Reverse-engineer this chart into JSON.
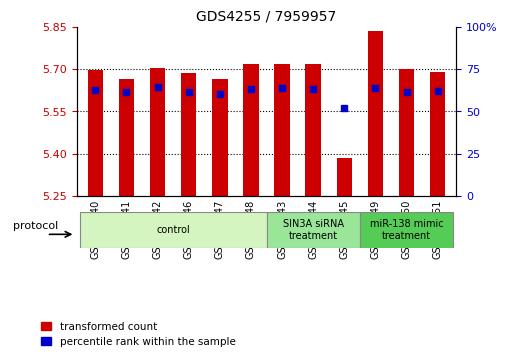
{
  "title": "GDS4255 / 7959957",
  "samples": [
    "GSM952740",
    "GSM952741",
    "GSM952742",
    "GSM952746",
    "GSM952747",
    "GSM952748",
    "GSM952743",
    "GSM952744",
    "GSM952745",
    "GSM952749",
    "GSM952750",
    "GSM952751"
  ],
  "red_values": [
    5.695,
    5.663,
    5.704,
    5.685,
    5.663,
    5.717,
    5.717,
    5.717,
    5.385,
    5.835,
    5.7,
    5.688
  ],
  "blue_values": [
    5.625,
    5.618,
    5.638,
    5.62,
    5.613,
    5.628,
    5.632,
    5.63,
    5.563,
    5.632,
    5.618,
    5.622
  ],
  "ymin": 5.25,
  "ymax": 5.85,
  "y2min": 0,
  "y2max": 100,
  "yticks": [
    5.25,
    5.4,
    5.55,
    5.7,
    5.85
  ],
  "y2ticks": [
    0,
    25,
    50,
    75,
    100
  ],
  "y2ticklabels": [
    "0",
    "25",
    "50",
    "75",
    "100%"
  ],
  "grid_yticks": [
    5.4,
    5.55,
    5.7
  ],
  "groups": [
    {
      "label": "control",
      "start": 0,
      "end": 5,
      "color": "#d4f5c0"
    },
    {
      "label": "SIN3A siRNA\ntreatment",
      "start": 6,
      "end": 8,
      "color": "#99e699"
    },
    {
      "label": "miR-138 mimic\ntreatment",
      "start": 9,
      "end": 11,
      "color": "#55cc55"
    }
  ],
  "red_color": "#cc0000",
  "blue_color": "#0000cc",
  "bar_width": 0.5,
  "legend_red": "transformed count",
  "legend_blue": "percentile rank within the sample",
  "protocol_label": "protocol",
  "tick_color_left": "#cc0000",
  "tick_color_right": "#0000cc"
}
